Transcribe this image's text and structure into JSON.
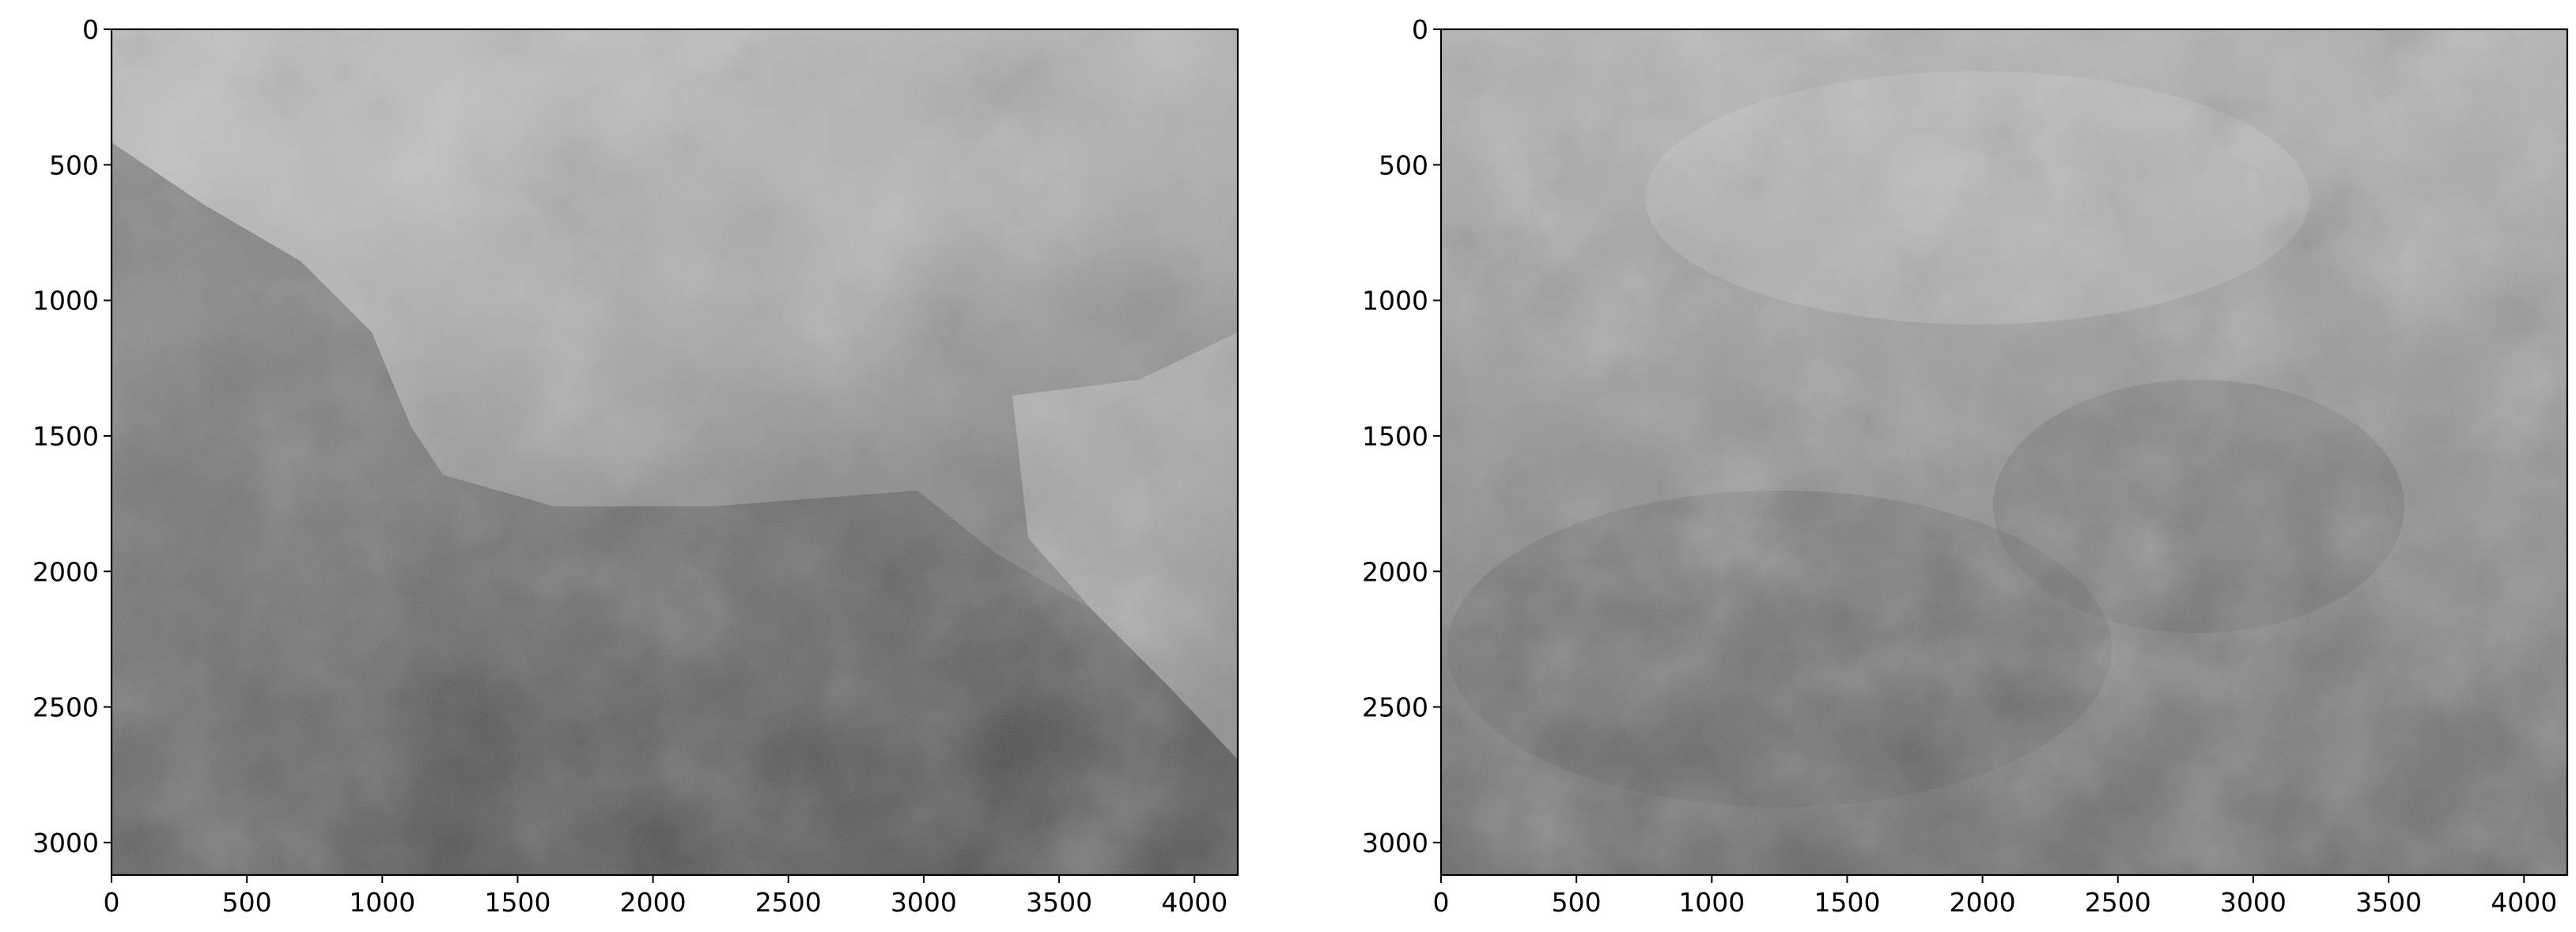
{
  "chart_data": [
    {
      "type": "heatmap",
      "title": "",
      "xlabel": "",
      "ylabel": "",
      "colormap": "gray",
      "xlim": [
        0,
        4160
      ],
      "ylim": [
        3120,
        0
      ],
      "xticks": [
        0,
        500,
        1000,
        1500,
        2000,
        2500,
        3000,
        3500,
        4000
      ],
      "yticks": [
        0,
        500,
        1000,
        1500,
        2000,
        2500,
        3000
      ],
      "grid": false,
      "legend": false
    },
    {
      "type": "heatmap",
      "title": "",
      "xlabel": "",
      "ylabel": "",
      "colormap": "gray",
      "xlim": [
        0,
        4160
      ],
      "ylim": [
        3120,
        0
      ],
      "xticks": [
        0,
        500,
        1000,
        1500,
        2000,
        2500,
        3000,
        3500,
        4000
      ],
      "yticks": [
        0,
        500,
        1000,
        1500,
        2000,
        2500,
        3000
      ],
      "grid": false,
      "legend": false
    }
  ],
  "colors": {
    "background": "#ffffff",
    "axes": "#000000",
    "image_light": "#cfcfcf",
    "image_dark": "#3a3a3a"
  }
}
